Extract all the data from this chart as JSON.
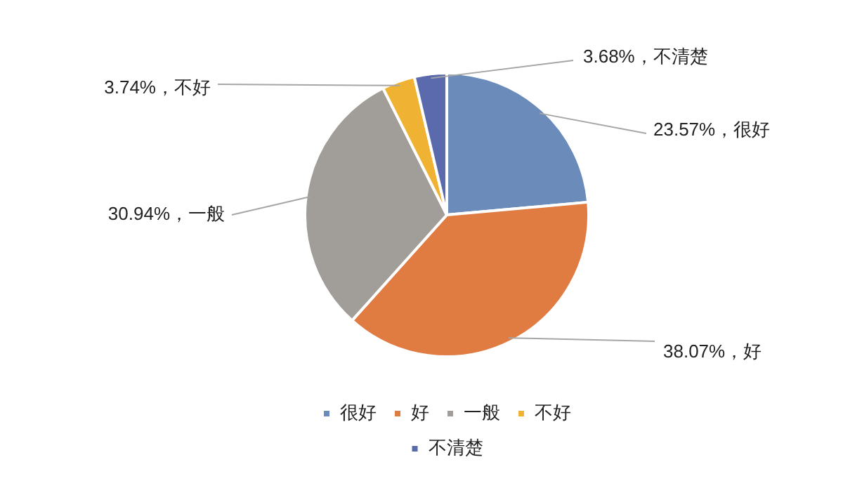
{
  "chart_data": {
    "type": "pie",
    "categories": [
      "很好",
      "好",
      "一般",
      "不好",
      "不清楚"
    ],
    "values": [
      23.57,
      38.07,
      30.94,
      3.74,
      3.68
    ],
    "colors": [
      "#6b8cba",
      "#e07b42",
      "#a19d98",
      "#f0b233",
      "#5a6aad"
    ],
    "value_labels": [
      "23.57%，很好",
      "38.07%，好",
      "30.94%，一般",
      "3.74%，不好",
      "3.68%，不清楚"
    ],
    "legend": "bottom"
  }
}
